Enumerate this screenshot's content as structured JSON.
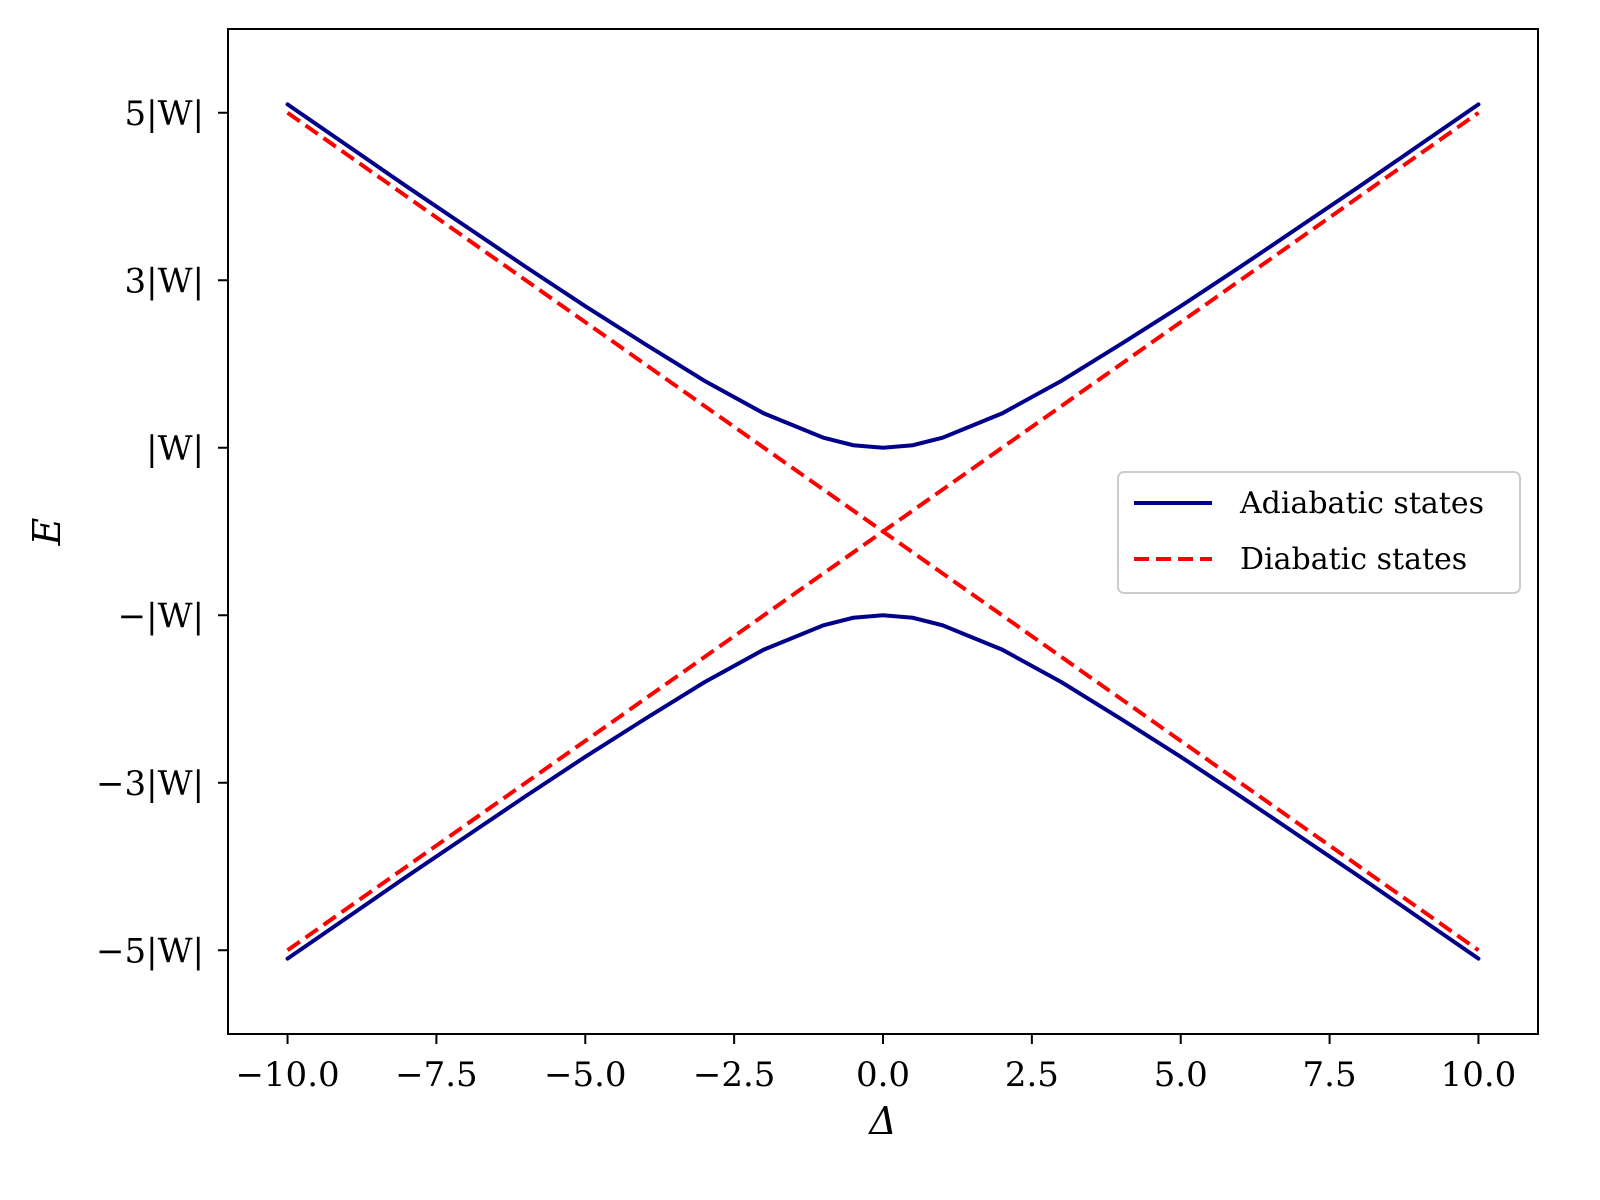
{
  "chart_data": {
    "type": "line",
    "xlabel": "Δ",
    "ylabel": "E",
    "xlim": [
      -11.0,
      11.0
    ],
    "ylim": [
      -6.0,
      6.0
    ],
    "x_ticks": [
      {
        "value": -10.0,
        "label": "−10.0"
      },
      {
        "value": -7.5,
        "label": "−7.5"
      },
      {
        "value": -5.0,
        "label": "−5.0"
      },
      {
        "value": -2.5,
        "label": "−2.5"
      },
      {
        "value": 0.0,
        "label": "0.0"
      },
      {
        "value": 2.5,
        "label": "2.5"
      },
      {
        "value": 5.0,
        "label": "5.0"
      },
      {
        "value": 7.5,
        "label": "7.5"
      },
      {
        "value": 10.0,
        "label": "10.0"
      }
    ],
    "y_ticks": [
      {
        "value": 5,
        "label": "5|W|"
      },
      {
        "value": 3,
        "label": "3|W|"
      },
      {
        "value": 1,
        "label": "|W|"
      },
      {
        "value": -1,
        "label": "−|W|"
      },
      {
        "value": -3,
        "label": "−3|W|"
      },
      {
        "value": -5,
        "label": "−5|W|"
      }
    ],
    "grid": false,
    "legend_position": "center-right",
    "x": [
      -10,
      -9,
      -8,
      -7,
      -6,
      -5,
      -4,
      -3,
      -2,
      -1,
      -0.5,
      0,
      0.5,
      1,
      2,
      3,
      4,
      5,
      6,
      7,
      8,
      9,
      10
    ],
    "series": [
      {
        "name": "Adiabatic states",
        "group": "adiabatic",
        "color": "#00008b",
        "dash": "solid",
        "values": [
          5.1,
          4.61,
          4.12,
          3.64,
          3.16,
          2.69,
          2.24,
          1.8,
          1.41,
          1.12,
          1.03,
          1.0,
          1.03,
          1.12,
          1.41,
          1.8,
          2.24,
          2.69,
          3.16,
          3.64,
          4.12,
          4.61,
          5.1
        ]
      },
      {
        "name": "Adiabatic states",
        "group": "adiabatic",
        "color": "#00008b",
        "dash": "solid",
        "values": [
          -5.1,
          -4.61,
          -4.12,
          -3.64,
          -3.16,
          -2.69,
          -2.24,
          -1.8,
          -1.41,
          -1.12,
          -1.03,
          -1.0,
          -1.03,
          -1.12,
          -1.41,
          -1.8,
          -2.24,
          -2.69,
          -3.16,
          -3.64,
          -4.12,
          -4.61,
          -5.1
        ]
      },
      {
        "name": "Diabatic states",
        "group": "diabatic",
        "color": "#ff0000",
        "dash": "dashed",
        "values": [
          5.0,
          4.5,
          4.0,
          3.5,
          3.0,
          2.5,
          2.0,
          1.5,
          1.0,
          0.5,
          0.25,
          0.0,
          -0.25,
          -0.5,
          -1.0,
          -1.5,
          -2.0,
          -2.5,
          -3.0,
          -3.5,
          -4.0,
          -4.5,
          -5.0
        ]
      },
      {
        "name": "Diabatic states",
        "group": "diabatic",
        "color": "#ff0000",
        "dash": "dashed",
        "values": [
          -5.0,
          -4.5,
          -4.0,
          -3.5,
          -3.0,
          -2.5,
          -2.0,
          -1.5,
          -1.0,
          -0.5,
          -0.25,
          0.0,
          0.25,
          0.5,
          1.0,
          1.5,
          2.0,
          2.5,
          3.0,
          3.5,
          4.0,
          4.5,
          5.0
        ]
      }
    ],
    "legend": [
      {
        "label": "Adiabatic states",
        "color": "#00008b",
        "dash": "solid"
      },
      {
        "label": "Diabatic states",
        "color": "#ff0000",
        "dash": "dashed"
      }
    ]
  }
}
